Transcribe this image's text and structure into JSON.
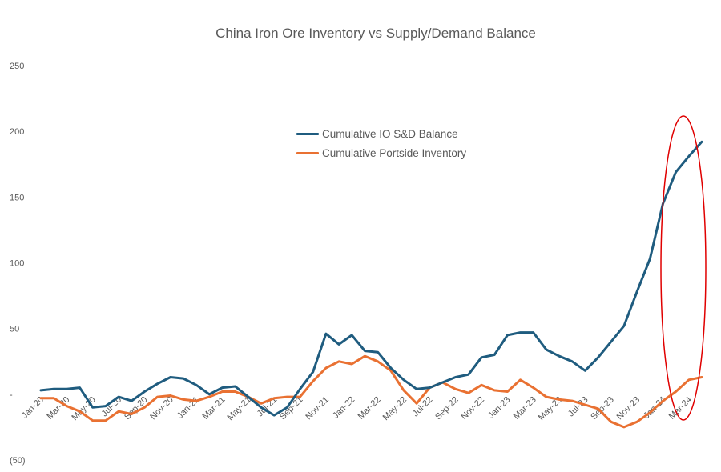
{
  "chart_data": {
    "type": "line",
    "title": "China Iron Ore Inventory vs Supply/Demand Balance",
    "ylim": [
      -50,
      250
    ],
    "yticks": [
      250,
      200,
      150,
      100,
      50,
      0,
      -50
    ],
    "ytick_labels": [
      "250",
      "200",
      "150",
      "100",
      "50",
      "-",
      "(50)"
    ],
    "grid": false,
    "legend_position": "upper-middle",
    "x": [
      "Jan-20",
      "Feb-20",
      "Mar-20",
      "Apr-20",
      "May-20",
      "Jun-20",
      "Jul-20",
      "Aug-20",
      "Sep-20",
      "Oct-20",
      "Nov-20",
      "Dec-20",
      "Jan-21",
      "Feb-21",
      "Mar-21",
      "Apr-21",
      "May-21",
      "Jun-21",
      "Jul-21",
      "Aug-21",
      "Sep-21",
      "Oct-21",
      "Nov-21",
      "Dec-21",
      "Jan-22",
      "Feb-22",
      "Mar-22",
      "Apr-22",
      "May-22",
      "Jun-22",
      "Jul-22",
      "Aug-22",
      "Sep-22",
      "Oct-22",
      "Nov-22",
      "Dec-22",
      "Jan-23",
      "Feb-23",
      "Mar-23",
      "Apr-23",
      "May-23",
      "Jun-23",
      "Jul-23",
      "Aug-23",
      "Sep-23",
      "Oct-23",
      "Nov-23",
      "Dec-23",
      "Jan-24",
      "Feb-24",
      "Mar-24",
      "Apr-24"
    ],
    "xtick_labels": [
      "Jan-20",
      "Mar-20",
      "May-20",
      "Jul-20",
      "Sep-20",
      "Nov-20",
      "Jan-21",
      "Mar-21",
      "May-21",
      "Jul-21",
      "Sep-21",
      "Nov-21",
      "Jan-22",
      "Mar-22",
      "May-22",
      "Jul-22",
      "Sep-22",
      "Nov-22",
      "Jan-23",
      "Mar-23",
      "May-23",
      "Jul-23",
      "Sep-23",
      "Nov-23",
      "Jan-24",
      "Mar-24"
    ],
    "series": [
      {
        "name": "Cumulative IO S&D Balance",
        "color": "#1F5C7F",
        "values": [
          3,
          4,
          4,
          5,
          -10,
          -9,
          -2,
          -5,
          2,
          8,
          13,
          12,
          7,
          0,
          5,
          6,
          -2,
          -10,
          -16,
          -10,
          4,
          17,
          46,
          38,
          45,
          33,
          32,
          20,
          11,
          4,
          5,
          9,
          13,
          15,
          28,
          30,
          45,
          47,
          47,
          34,
          29,
          25,
          18,
          28,
          40,
          52,
          78,
          103,
          145,
          169,
          181,
          192
        ]
      },
      {
        "name": "Cumulative Portside Inventory",
        "color": "#E97132",
        "values": [
          -3,
          -3,
          -9,
          -13,
          -20,
          -20,
          -13,
          -15,
          -10,
          -2,
          -1,
          -4,
          -5,
          -2,
          2,
          2,
          -2,
          -7,
          -3,
          -2,
          -2,
          10,
          20,
          25,
          23,
          29,
          25,
          18,
          3,
          -7,
          5,
          9,
          4,
          1,
          7,
          3,
          2,
          11,
          5,
          -2,
          -4,
          -5,
          -8,
          -11,
          -21,
          -25,
          -21,
          -14,
          -5,
          2,
          11,
          13
        ]
      }
    ]
  }
}
